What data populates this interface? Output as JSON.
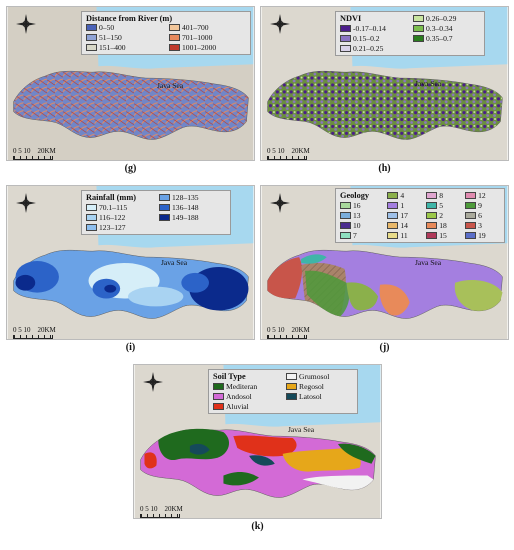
{
  "sea_label": "Java Sea",
  "scale": {
    "ticks": [
      "0",
      "5",
      "10",
      "20KM"
    ]
  },
  "panels": [
    {
      "caption": "(g)",
      "legend": {
        "title": "Distance from River (m)",
        "entries": [
          {
            "label": "0–50",
            "color": "#4a62b8"
          },
          {
            "label": "401–700",
            "color": "#f2c69a"
          },
          {
            "label": "51–150",
            "color": "#8fa3d6"
          },
          {
            "label": "701–1000",
            "color": "#e88a5e"
          },
          {
            "label": "151–400",
            "color": "#d8d8c8"
          },
          {
            "label": "1001–2000",
            "color": "#c03a2b"
          }
        ]
      }
    },
    {
      "caption": "(h)",
      "legend": {
        "title": "NDVI",
        "entries": [
          {
            "label": "0.26–0.29",
            "color": "#c9e5a0"
          },
          {
            "label": "-0.17–0.14",
            "color": "#4b1d8a"
          },
          {
            "label": "0.3–0.34",
            "color": "#7cbf4e"
          },
          {
            "label": "0.15–0.2",
            "color": "#8a73c2"
          },
          {
            "label": "0.35–0.7",
            "color": "#2b7d1e"
          },
          {
            "label": "0.21–0.25",
            "color": "#d9d2e9"
          }
        ]
      }
    },
    {
      "caption": "(i)",
      "legend": {
        "title": "Rainfall (mm)",
        "entries": [
          {
            "label": "128–135",
            "color": "#6aa2e6"
          },
          {
            "label": "70.1–115",
            "color": "#d6eef8"
          },
          {
            "label": "136–148",
            "color": "#2c63c8"
          },
          {
            "label": "116–122",
            "color": "#a9d3f2"
          },
          {
            "label": "149–188",
            "color": "#0b2a8c"
          },
          {
            "label": "123–127",
            "color": "#8ebfef"
          }
        ]
      }
    },
    {
      "caption": "(j)",
      "legend": {
        "title": "Geology",
        "entries": [
          {
            "label": "4",
            "color": "#8bb04b"
          },
          {
            "label": "8",
            "color": "#e0a6d0"
          },
          {
            "label": "12",
            "color": "#e08bb0"
          },
          {
            "label": "16",
            "color": "#a8d89c"
          },
          {
            "label": "1",
            "color": "#a47fe0"
          },
          {
            "label": "5",
            "color": "#3fb5a8"
          },
          {
            "label": "9",
            "color": "#4d9a3a"
          },
          {
            "label": "13",
            "color": "#7aaedc"
          },
          {
            "label": "17",
            "color": "#9ec0e8"
          },
          {
            "label": "2",
            "color": "#9cc84a"
          },
          {
            "label": "6",
            "color": "#a9a99b"
          },
          {
            "label": "10",
            "color": "#4b2d8f"
          },
          {
            "label": "14",
            "color": "#e8b86a"
          },
          {
            "label": "18",
            "color": "#e88a5a"
          },
          {
            "label": "3",
            "color": "#c8554a"
          },
          {
            "label": "7",
            "color": "#8fe0c0"
          },
          {
            "label": "11",
            "color": "#e8dc8a"
          },
          {
            "label": "15",
            "color": "#b03a5a"
          },
          {
            "label": "19",
            "color": "#5a6ec8"
          }
        ]
      }
    },
    {
      "caption": "(k)",
      "legend": {
        "title": "Soil Type",
        "entries": [
          {
            "label": "Grumosol",
            "color": "#f2f2f2"
          },
          {
            "label": "Mediteran",
            "color": "#1f6a1e"
          },
          {
            "label": "Regosol",
            "color": "#e6a71a"
          },
          {
            "label": "Andosol",
            "color": "#d36ad6"
          },
          {
            "label": "Latosol",
            "color": "#154a5a"
          },
          {
            "label": "Aluvial",
            "color": "#e0311a"
          }
        ]
      }
    }
  ]
}
